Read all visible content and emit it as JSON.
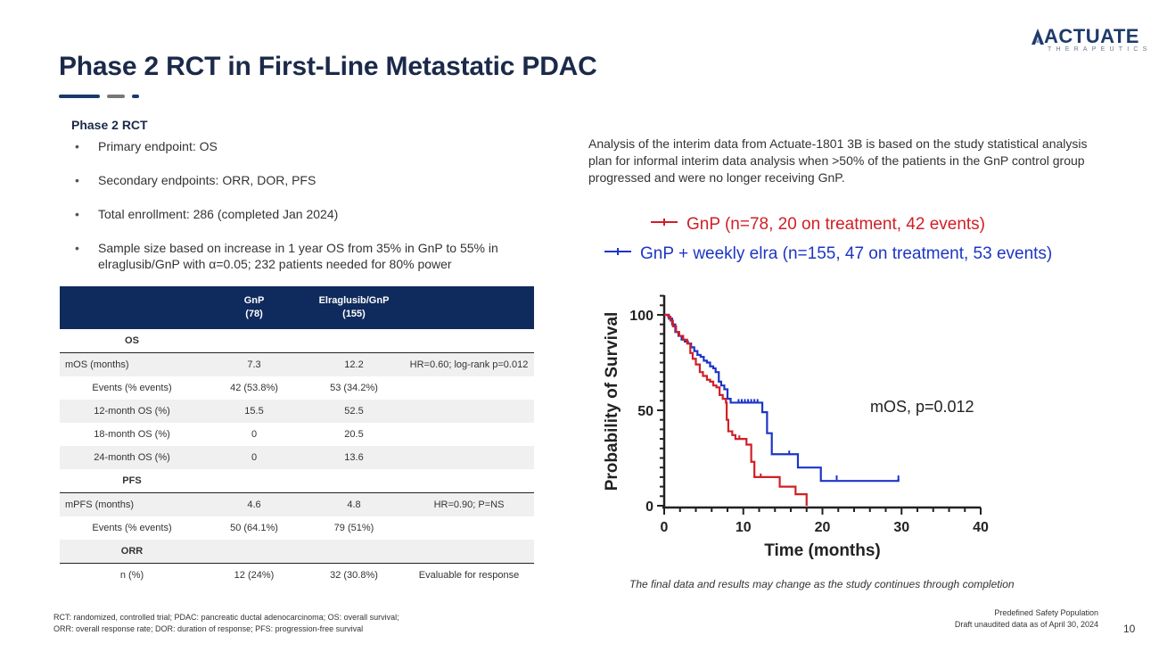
{
  "title": "Phase 2 RCT in First-Line Metastatic PDAC",
  "logo": {
    "name": "ACTUATE",
    "sub": "THERAPEUTICS"
  },
  "colors": {
    "navy": "#0f2a5c",
    "accent_dark": "#1b3a6b",
    "accent_gray": "#777777",
    "gnp_red": "#d01f26",
    "elra_blue": "#1d35c6"
  },
  "section_title": "Phase 2 RCT",
  "bullets": [
    "Primary endpoint: OS",
    "Secondary endpoints: ORR, DOR, PFS",
    "Total enrollment: 286 (completed Jan 2024)",
    "Sample size based on increase in 1 year OS from 35% in GnP to 55% in elraglusib/GnP with α=0.05; 232 patients needed for 80% power"
  ],
  "analysis_text": "Analysis of the interim data from Actuate-1801 3B is based on the study statistical analysis plan for informal interim data analysis when >50% of the patients in the GnP control group progressed and were no longer receiving GnP.",
  "table": {
    "headers": [
      "",
      "GnP\n(78)",
      "Elraglusib/GnP\n(155)",
      ""
    ],
    "rows": [
      {
        "kind": "section",
        "cells": [
          "OS",
          "",
          "",
          ""
        ]
      },
      {
        "kind": "shade",
        "cells": [
          "mOS (months)",
          "7.3",
          "12.2",
          "HR=0.60; log-rank p=0.012"
        ]
      },
      {
        "kind": "plain",
        "cells": [
          "Events (% events)",
          "42 (53.8%)",
          "53 (34.2%)",
          ""
        ]
      },
      {
        "kind": "shade",
        "cells": [
          "12-month OS (%)",
          "15.5",
          "52.5",
          ""
        ]
      },
      {
        "kind": "plain",
        "cells": [
          "18-month OS (%)",
          "0",
          "20.5",
          ""
        ]
      },
      {
        "kind": "shade",
        "cells": [
          "24-month OS (%)",
          "0",
          "13.6",
          ""
        ]
      },
      {
        "kind": "section",
        "cells": [
          "PFS",
          "",
          "",
          ""
        ]
      },
      {
        "kind": "shade",
        "cells": [
          "mPFS (months)",
          "4.6",
          "4.8",
          "HR=0.90; P=NS"
        ]
      },
      {
        "kind": "plain",
        "cells": [
          "Events (% events)",
          "50 (64.1%)",
          "79 (51%)",
          ""
        ]
      },
      {
        "kind": "section-shade",
        "cells": [
          "ORR",
          "",
          "",
          ""
        ]
      },
      {
        "kind": "plain",
        "cells": [
          "n (%)",
          "12 (24%)",
          "32 (30.8%)",
          "Evaluable for response"
        ]
      }
    ]
  },
  "legend": {
    "gnp": "GnP (n=78, 20 on treatment, 42 events)",
    "elra": "GnP + weekly elra (n=155, 47 on treatment, 53 events)"
  },
  "chart_data": {
    "type": "line",
    "title": "",
    "xlabel": "Time (months)",
    "ylabel": "Probability of Survival",
    "xlim": [
      0,
      40
    ],
    "ylim": [
      0,
      100
    ],
    "xticks": [
      0,
      10,
      20,
      30,
      40
    ],
    "yticks": [
      0,
      50,
      100
    ],
    "annotation": "mOS, p=0.012",
    "series": [
      {
        "name": "GnP",
        "color": "#d01f26",
        "steps": [
          [
            0,
            100
          ],
          [
            0.5,
            99
          ],
          [
            0.8,
            97
          ],
          [
            1.1,
            94
          ],
          [
            1.5,
            91
          ],
          [
            1.9,
            89
          ],
          [
            2.4,
            87
          ],
          [
            2.9,
            85
          ],
          [
            3.3,
            80
          ],
          [
            3.6,
            77
          ],
          [
            4.0,
            74
          ],
          [
            4.5,
            70
          ],
          [
            4.9,
            68
          ],
          [
            5.4,
            66
          ],
          [
            5.8,
            65
          ],
          [
            6.2,
            63
          ],
          [
            6.6,
            62
          ],
          [
            7.0,
            58
          ],
          [
            7.4,
            56
          ],
          [
            7.8,
            54
          ],
          [
            7.9,
            45
          ],
          [
            8.1,
            39
          ],
          [
            8.6,
            37
          ],
          [
            9.0,
            35
          ],
          [
            10.1,
            35
          ],
          [
            10.4,
            32
          ],
          [
            11.0,
            23
          ],
          [
            11.4,
            15
          ],
          [
            12.5,
            15
          ],
          [
            14.6,
            10
          ],
          [
            16.5,
            10
          ],
          [
            16.6,
            6
          ],
          [
            17.6,
            6
          ],
          [
            18.0,
            0
          ]
        ],
        "censor": [
          [
            9.5,
            35
          ],
          [
            12.2,
            15
          ]
        ]
      },
      {
        "name": "GnP + weekly elra",
        "color": "#1d35c6",
        "steps": [
          [
            0,
            100
          ],
          [
            0.6,
            98
          ],
          [
            1.0,
            95
          ],
          [
            1.4,
            91
          ],
          [
            1.8,
            89
          ],
          [
            2.2,
            87
          ],
          [
            2.6,
            86
          ],
          [
            3.0,
            85
          ],
          [
            3.4,
            83
          ],
          [
            3.8,
            81
          ],
          [
            4.2,
            79
          ],
          [
            4.6,
            78
          ],
          [
            5.0,
            76
          ],
          [
            5.4,
            75
          ],
          [
            5.8,
            73
          ],
          [
            6.2,
            72
          ],
          [
            6.5,
            70
          ],
          [
            6.9,
            65
          ],
          [
            7.2,
            63
          ],
          [
            7.6,
            61
          ],
          [
            8.0,
            56
          ],
          [
            8.4,
            54
          ],
          [
            9.1,
            54
          ],
          [
            12.0,
            54
          ],
          [
            12.4,
            49
          ],
          [
            13.0,
            38
          ],
          [
            13.6,
            27
          ],
          [
            15.4,
            27
          ],
          [
            16.5,
            27
          ],
          [
            16.9,
            20
          ],
          [
            19.5,
            20
          ],
          [
            19.8,
            13
          ],
          [
            29.6,
            13
          ],
          [
            29.6,
            14
          ]
        ],
        "censor": [
          [
            9.4,
            54
          ],
          [
            9.8,
            54
          ],
          [
            10.2,
            54
          ],
          [
            10.6,
            54
          ],
          [
            11.0,
            54
          ],
          [
            11.4,
            54
          ],
          [
            11.8,
            54
          ],
          [
            15.8,
            27
          ],
          [
            21.8,
            14
          ],
          [
            29.6,
            14
          ]
        ]
      }
    ]
  },
  "caption": "The final data and results may change as the study continues through completion",
  "footnote": [
    "RCT: randomized, controlled trial; PDAC: pancreatic ductal adenocarcinoma; OS: overall survival;",
    "ORR: overall response rate; DOR: duration of response; PFS: progression-free survival"
  ],
  "footer_right": [
    "Predefined Safety Population",
    "Draft unaudited data as of April 30, 2024"
  ],
  "page_number": "10"
}
